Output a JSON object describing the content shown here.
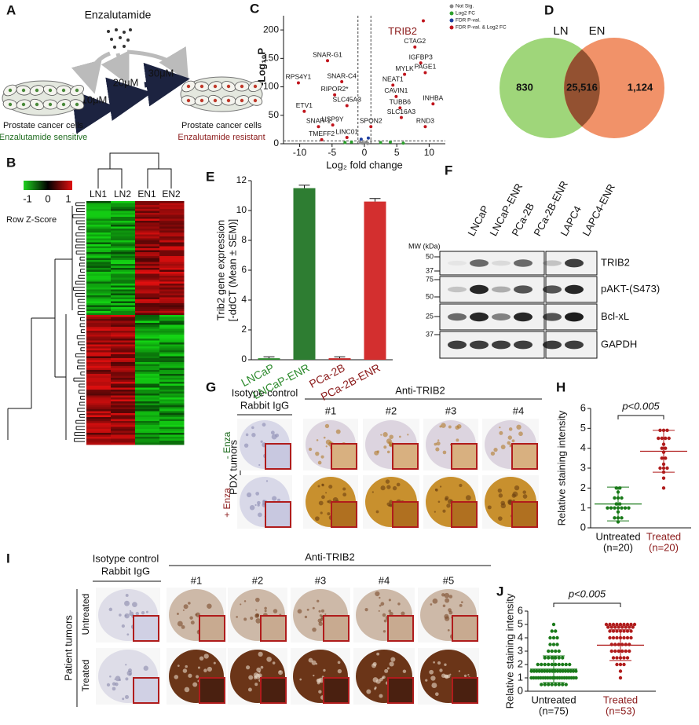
{
  "panels": {
    "A": {
      "label": "A",
      "drug": "Enzalutamide",
      "doses": [
        "10μM",
        "20μM",
        "30μM"
      ],
      "left": [
        "Prostate cancer cells",
        "Enzalutamide sensitive"
      ],
      "right": [
        "Prostate cancer cells",
        "Enzalutamide resistant"
      ]
    },
    "B": {
      "label": "B",
      "colorbar_ticks": [
        -1,
        0,
        1
      ],
      "colorbar_title": "Row Z-Score",
      "columns": [
        "LN1",
        "LN2",
        "EN1",
        "EN2"
      ]
    },
    "C": {
      "label": "C"
    },
    "D": {
      "label": "D"
    },
    "E": {
      "label": "E"
    },
    "F": {
      "label": "F",
      "lanes": [
        "LNCaP",
        "LNCaP-ENR",
        "PCa-2B",
        "PCa-2B-ENR",
        "LAPC4",
        "LAPC4-ENR"
      ],
      "mw_title": "MW (kDa)",
      "mw": [
        50,
        37,
        75,
        50,
        25,
        37
      ],
      "bands": [
        "TRIB2",
        "pAKT-(S473)",
        "Bcl-xL",
        "GAPDH"
      ]
    },
    "G": {
      "label": "G",
      "control": [
        "Isotype control",
        "Rabbit IgG"
      ],
      "antibody": "Anti-TRIB2",
      "samples": [
        "#1",
        "#2",
        "#3",
        "#4"
      ],
      "group": "PDX tumors",
      "rows": [
        "- Enza",
        "+ Enza"
      ]
    },
    "H": {
      "label": "H"
    },
    "I": {
      "label": "I",
      "control": [
        "Isotype control",
        "Rabbit IgG"
      ],
      "antibody": "Anti-TRIB2",
      "samples": [
        "#1",
        "#2",
        "#3",
        "#4",
        "#5"
      ],
      "group": "Patient tumors",
      "rows": [
        "Untreated",
        "Treated"
      ]
    },
    "J": {
      "label": "J"
    }
  },
  "chart_data": [
    {
      "type": "volcano",
      "xlabel": "Log₂ fold change",
      "ylabel": "-Log₁₀P",
      "xlim": [
        -12.5,
        12.5
      ],
      "ylim": [
        0,
        225
      ],
      "xticks": [
        -10,
        -5,
        0,
        5,
        10
      ],
      "yticks": [
        0,
        50,
        100,
        150,
        200
      ],
      "fc_cutoff": [
        -1,
        1
      ],
      "p_cutoff": 5,
      "series": [
        {
          "name": "Not Sig.",
          "color": "#888888",
          "x": [
            -0.3,
            0.2,
            0.5,
            -0.6
          ],
          "values": [
            1,
            2,
            0.5,
            1.5
          ]
        },
        {
          "name": "Log2 FC",
          "color": "#2ca02c",
          "x": [
            -3,
            -2,
            2.5,
            4,
            6
          ],
          "values": [
            2,
            3,
            2,
            3,
            1
          ]
        },
        {
          "name": "FDR P-val.",
          "color": "#1f3f9f",
          "x": [
            -0.5,
            0.6
          ],
          "values": [
            8,
            10
          ]
        },
        {
          "name": "FDR P-val. & Log2 FC",
          "color": "#c0141c",
          "labels": [
            "TRIB2",
            "CTAG2",
            "SNAR-G1",
            "RPS4Y1",
            "RIPOR2*",
            "SNAR-C4",
            "ETV1",
            "SLC45A3",
            "SNAR-1",
            "USP9Y",
            "TMEFF2",
            "LINC01",
            "SPON2",
            "IGFBP3",
            "MYLK",
            "PAGE1",
            "NEAT1",
            "CAVIN1",
            "TUBB6",
            "INHBA",
            "SLC16A3",
            "RND3"
          ],
          "x": [
            9.1,
            7.8,
            -5.7,
            -10.2,
            -4.6,
            -3.5,
            -9.3,
            -2.7,
            -7.1,
            -4.9,
            -6.6,
            -2.7,
            1,
            8.7,
            6.2,
            9.4,
            4.4,
            4.9,
            5.5,
            10.6,
            5.7,
            9.4
          ],
          "values": [
            216,
            170,
            146,
            107,
            86,
            109,
            57,
            67,
            30,
            33,
            7,
            11,
            30,
            142,
            122,
            125,
            103,
            83,
            63,
            70,
            46,
            30
          ]
        }
      ]
    },
    {
      "type": "venn",
      "sets": [
        "LN",
        "EN"
      ],
      "colors": [
        "#9fd67a",
        "#ee7f4f"
      ],
      "values": [
        830,
        25516,
        1124
      ],
      "value_labels": [
        "830",
        "25,516",
        "1,124"
      ]
    },
    {
      "type": "bar",
      "ylabel": [
        "Trib2 gene expression",
        "[-ddCT (Mean ± SEM)]"
      ],
      "categories": [
        "LNCaP",
        "LNCaP-ENR",
        "PCa-2B",
        "PCa-2B-ENR"
      ],
      "values": [
        0.1,
        11.5,
        0.1,
        10.6
      ],
      "errors": [
        0.1,
        0.2,
        0.1,
        0.2
      ],
      "colors": [
        "#2e8b2e",
        "#2e7d32",
        "#c62828",
        "#d32f2f"
      ],
      "label_colors": [
        "#2e8b2e",
        "#2e8b2e",
        "#8b1a1a",
        "#8b1a1a"
      ],
      "ylim": [
        0,
        12
      ],
      "yticks": [
        0,
        2,
        4,
        6,
        8,
        10,
        12
      ]
    },
    {
      "type": "dot",
      "ylabel": "Relative staining intensity",
      "annotation": "p<0.005",
      "ylim": [
        0,
        6
      ],
      "yticks": [
        0,
        1,
        2,
        3,
        4,
        5,
        6
      ],
      "categories": [
        [
          "Untreated",
          "(n=20)"
        ],
        [
          "Treated",
          "(n=20)"
        ]
      ],
      "label_colors": [
        "#111111",
        "#8b1a1a"
      ],
      "groups": [
        {
          "color": "#1a7a1a",
          "mean": 1.2,
          "error": 0.85,
          "values": [
            2,
            2,
            1.8,
            1.5,
            1.5,
            1.5,
            1.2,
            1.2,
            1,
            1,
            1,
            1,
            1,
            1,
            1,
            0.8,
            0.5,
            0.5,
            0.5,
            0.3
          ]
        },
        {
          "color": "#b01c1c",
          "mean": 3.85,
          "error": 1.05,
          "values": [
            4.9,
            4.9,
            4.9,
            4.5,
            4.5,
            4.5,
            4.5,
            4.2,
            4,
            4,
            3.8,
            3.5,
            3.5,
            3.2,
            3,
            3,
            3,
            2.8,
            2.5,
            2
          ]
        }
      ]
    },
    {
      "type": "dot",
      "ylabel": "Relative staining intensity",
      "annotation": "p<0.005",
      "ylim": [
        0,
        6
      ],
      "yticks": [
        0,
        1,
        2,
        3,
        4,
        5,
        6
      ],
      "categories": [
        [
          "Untreated",
          "(n=75)"
        ],
        [
          "Treated",
          "(n=53)"
        ]
      ],
      "label_colors": [
        "#111111",
        "#8b1a1a"
      ],
      "groups": [
        {
          "color": "#1a7a1a",
          "mean": 1.65,
          "error": 1.0,
          "values": [
            5,
            4.5,
            4.5,
            4,
            4,
            4,
            3.5,
            3.5,
            3.5,
            3,
            3,
            3,
            3,
            2.5,
            2.5,
            2.5,
            2.5,
            2.5,
            2.5,
            2,
            2,
            2,
            2,
            2,
            2,
            2,
            2,
            2,
            2,
            1.5,
            1.5,
            1.5,
            1.5,
            1.5,
            1.5,
            1.5,
            1.5,
            1.5,
            1.5,
            1.5,
            1.5,
            1.5,
            1.5,
            1.5,
            1.5,
            1.5,
            1.5,
            1,
            1,
            1,
            1,
            1,
            1,
            1,
            1,
            1,
            1,
            1,
            1,
            1,
            1,
            1,
            1,
            1,
            1,
            1,
            1,
            0.5,
            0.5,
            0.5,
            0.5,
            0.5,
            0.5,
            0.5,
            0.5
          ]
        },
        {
          "color": "#b01c1c",
          "mean": 3.45,
          "error": 1.15,
          "values": [
            5,
            5,
            5,
            5,
            5,
            5,
            5,
            5,
            5,
            4.8,
            4.8,
            4.8,
            4.8,
            4.8,
            4.8,
            4.8,
            4.8,
            4.5,
            4.5,
            4.5,
            4.5,
            4.5,
            4.5,
            4.5,
            4,
            4,
            4,
            4,
            4,
            4,
            4,
            3.5,
            3.5,
            3.5,
            3.5,
            3.5,
            3.5,
            3,
            3,
            3,
            3,
            3,
            3,
            2.5,
            2.5,
            2.5,
            2.5,
            2.5,
            2,
            2,
            2,
            1.5,
            1
          ]
        }
      ]
    }
  ]
}
